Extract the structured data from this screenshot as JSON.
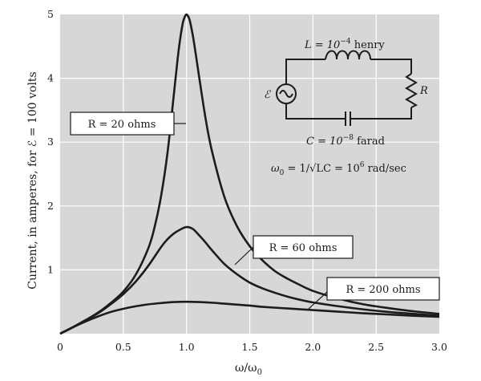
{
  "chart_data": {
    "type": "line",
    "xlabel": "ω/ω",
    "xlabel_sub": "0",
    "ylabel": "Current, in amperes, for ℰ = 100 volts",
    "xlim": [
      0,
      3.0
    ],
    "ylim": [
      0,
      5
    ],
    "x_ticks": [
      "0",
      "0.5",
      "1.0",
      "1.5",
      "2.0",
      "2.5",
      "3.0"
    ],
    "y_ticks": [
      "1",
      "2",
      "3",
      "4",
      "5"
    ],
    "grid": true,
    "plot_background": "#d7d7d7",
    "curve_color": "#1c1c1c",
    "series": [
      {
        "name": "R = 20 ohms",
        "x": [
          0,
          0.1,
          0.2,
          0.3,
          0.4,
          0.5,
          0.6,
          0.7,
          0.75,
          0.8,
          0.85,
          0.9,
          0.93,
          0.95,
          0.97,
          0.98,
          0.99,
          1.0,
          1.01,
          1.02,
          1.03,
          1.05,
          1.07,
          1.1,
          1.15,
          1.2,
          1.3,
          1.4,
          1.5,
          1.6,
          1.7,
          1.8,
          1.9,
          2.0,
          2.2,
          2.4,
          2.6,
          2.8,
          3.0
        ],
        "y": [
          0,
          0.1,
          0.21,
          0.33,
          0.48,
          0.66,
          0.93,
          1.35,
          1.69,
          2.17,
          2.84,
          3.75,
          4.31,
          4.62,
          4.86,
          4.93,
          4.98,
          5.0,
          4.98,
          4.94,
          4.87,
          4.67,
          4.42,
          4.02,
          3.38,
          2.87,
          2.14,
          1.68,
          1.37,
          1.15,
          0.98,
          0.86,
          0.76,
          0.67,
          0.55,
          0.46,
          0.4,
          0.35,
          0.31
        ]
      },
      {
        "name": "R = 60 ohms",
        "x": [
          0,
          0.1,
          0.2,
          0.3,
          0.4,
          0.5,
          0.6,
          0.7,
          0.8,
          0.85,
          0.9,
          0.95,
          1.0,
          1.05,
          1.1,
          1.15,
          1.2,
          1.3,
          1.4,
          1.5,
          1.6,
          1.7,
          1.8,
          1.9,
          2.0,
          2.2,
          2.4,
          2.6,
          2.8,
          3.0
        ],
        "y": [
          0,
          0.1,
          0.21,
          0.32,
          0.46,
          0.62,
          0.82,
          1.07,
          1.36,
          1.48,
          1.57,
          1.63,
          1.67,
          1.64,
          1.54,
          1.43,
          1.31,
          1.09,
          0.93,
          0.8,
          0.71,
          0.64,
          0.58,
          0.53,
          0.49,
          0.43,
          0.38,
          0.34,
          0.31,
          0.28
        ]
      },
      {
        "name": "R = 200 ohms",
        "x": [
          0,
          0.1,
          0.2,
          0.3,
          0.4,
          0.5,
          0.6,
          0.7,
          0.8,
          0.9,
          1.0,
          1.1,
          1.2,
          1.3,
          1.4,
          1.5,
          1.6,
          1.8,
          2.0,
          2.2,
          2.4,
          2.6,
          2.8,
          3.0
        ],
        "y": [
          0,
          0.1,
          0.19,
          0.27,
          0.34,
          0.39,
          0.43,
          0.46,
          0.48,
          0.495,
          0.5,
          0.495,
          0.485,
          0.47,
          0.455,
          0.44,
          0.42,
          0.395,
          0.37,
          0.345,
          0.32,
          0.3,
          0.28,
          0.265
        ]
      }
    ],
    "annotations": [
      {
        "text": "R = 20 ohms"
      },
      {
        "text": "R = 60 ohms"
      },
      {
        "text": "R = 200 ohms"
      }
    ]
  },
  "circuit": {
    "L_label": "L = 10",
    "L_exp": "−4",
    "L_unit": " henry",
    "R_label": "R",
    "emf_label": "ℰ",
    "C_label": "C = 10",
    "C_exp": "−8",
    "C_unit": "  farad",
    "omega0_sym": "ω",
    "omega0_sub": "0",
    "omega0_rest": " = 1/√LC = 10",
    "omega0_exp": "6",
    "omega0_unit": " rad/sec"
  }
}
